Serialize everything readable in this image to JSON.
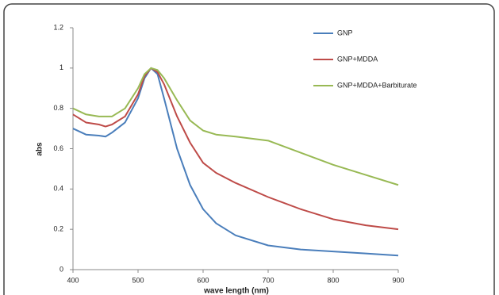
{
  "chart_data": {
    "type": "line",
    "x_label": "wave length (nm)",
    "y_label": "abs",
    "x": [
      400,
      420,
      440,
      450,
      460,
      480,
      500,
      510,
      520,
      530,
      540,
      560,
      580,
      600,
      620,
      650,
      700,
      750,
      800,
      850,
      900
    ],
    "series": [
      {
        "name": "GNP",
        "color": "#4a7ebb",
        "values": [
          0.7,
          0.67,
          0.665,
          0.66,
          0.68,
          0.73,
          0.85,
          0.95,
          1.0,
          0.97,
          0.85,
          0.6,
          0.42,
          0.3,
          0.23,
          0.17,
          0.12,
          0.1,
          0.09,
          0.08,
          0.07
        ]
      },
      {
        "name": "GNP+MDDA",
        "color": "#be4b48",
        "values": [
          0.77,
          0.73,
          0.72,
          0.71,
          0.72,
          0.76,
          0.87,
          0.96,
          1.0,
          0.98,
          0.92,
          0.76,
          0.63,
          0.53,
          0.48,
          0.43,
          0.36,
          0.3,
          0.25,
          0.22,
          0.2
        ]
      },
      {
        "name": "GNP+MDDA+Barbiturate",
        "color": "#98b954",
        "values": [
          0.8,
          0.77,
          0.76,
          0.76,
          0.76,
          0.8,
          0.9,
          0.97,
          1.0,
          0.99,
          0.95,
          0.84,
          0.74,
          0.69,
          0.67,
          0.66,
          0.64,
          0.58,
          0.52,
          0.47,
          0.42
        ]
      }
    ],
    "xlim": [
      400,
      900
    ],
    "xticks": [
      400,
      500,
      600,
      700,
      800,
      900
    ],
    "ylim": [
      0,
      1.2
    ],
    "yticks": [
      0,
      0.2,
      0.4,
      0.6,
      0.8,
      1,
      1.2
    ],
    "grid": false,
    "legend": "top-right"
  }
}
